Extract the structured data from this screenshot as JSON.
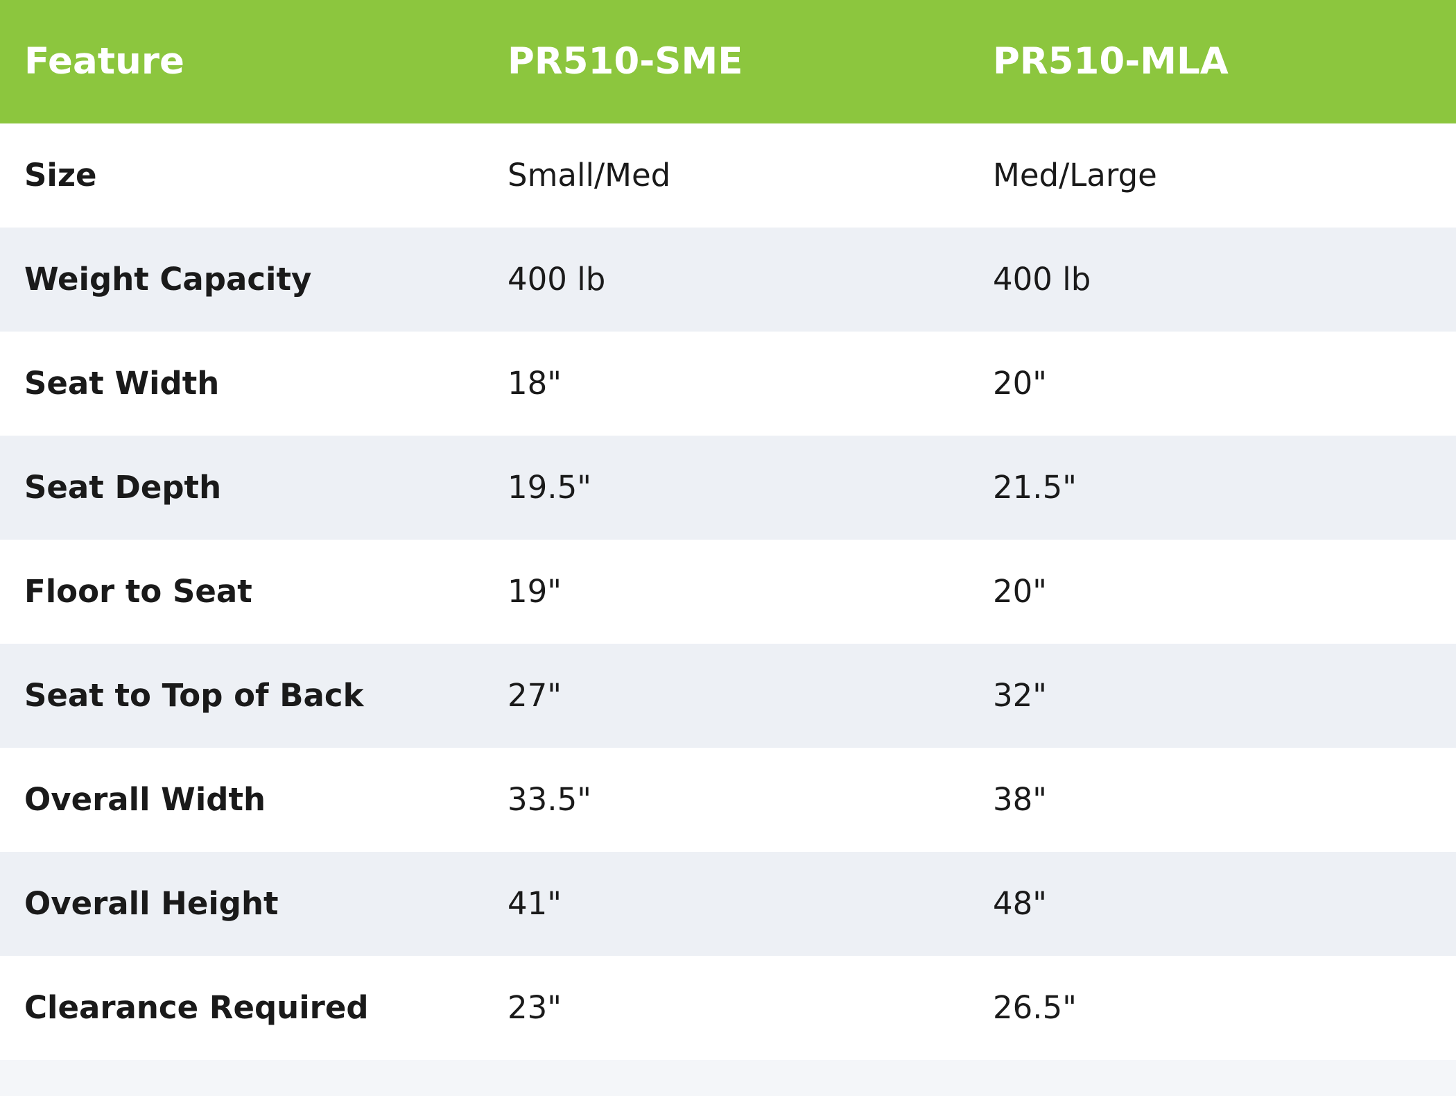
{
  "chart_data": {
    "type": "table",
    "columns": [
      "Feature",
      "PR510-SME",
      "PR510-MLA"
    ],
    "rows": [
      [
        "Size",
        "Small/Med",
        "Med/Large"
      ],
      [
        "Weight Capacity",
        "400 lb",
        "400 lb"
      ],
      [
        "Seat Width",
        "18\"",
        "20\""
      ],
      [
        "Seat Depth",
        "19.5\"",
        "21.5\""
      ],
      [
        "Floor to Seat",
        "19\"",
        "20\""
      ],
      [
        "Seat to Top of Back",
        "27\"",
        "32\""
      ],
      [
        "Overall Width",
        "33.5\"",
        "38\""
      ],
      [
        "Overall Height",
        "41\"",
        "48\""
      ],
      [
        "Clearance Required",
        "23\"",
        "26.5\""
      ]
    ],
    "layout": {
      "header_position": "top",
      "zebra_striping": true,
      "grid": "off",
      "partial_row_visible_at_bottom": true
    }
  },
  "colors": {
    "header_bg": "#8cc63e",
    "header_text": "#ffffff",
    "row_bg": "#ffffff",
    "row_alt_bg": "#edf0f5",
    "partial_row_bg": "#f4f6f9",
    "body_text": "#1a1a1a"
  }
}
